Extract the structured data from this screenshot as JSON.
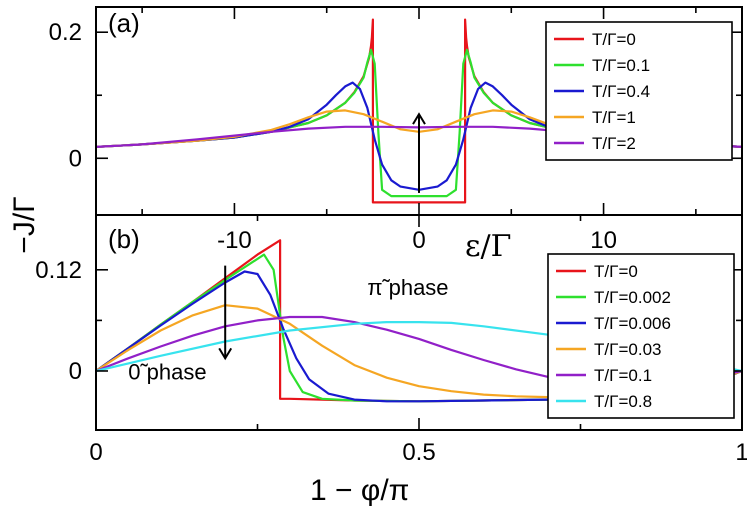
{
  "figure": {
    "y_axis_title": "−J/Γ",
    "y_axis_title_y_fixed": true
  },
  "chart_data": [
    {
      "panel": "(a)",
      "type": "line",
      "xlabel": "ε/Γ",
      "ylabel": "−J/Γ",
      "xlim": [
        -17.5,
        17.5
      ],
      "ylim": [
        -0.09,
        0.24
      ],
      "x_ticks": [
        -10,
        0,
        10
      ],
      "x_tick_labels": [
        "-10",
        "0",
        "10"
      ],
      "y_ticks": [
        0,
        0.2
      ],
      "y_tick_labels": [
        "0",
        "0.2"
      ],
      "legend_position": "top-right",
      "grid": false,
      "annotations": [
        {
          "type": "arrow",
          "x": 0,
          "from_y": -0.055,
          "to_y": 0.07,
          "meaning": "increasing T"
        }
      ],
      "series": [
        {
          "name": "T/Γ=0",
          "color": "#e8141b",
          "x": [
            -17.5,
            -15,
            -12,
            -10,
            -8,
            -6,
            -5,
            -4,
            -3.5,
            -3,
            -2.7,
            -2.6,
            -2.55,
            -2.5,
            -2.5,
            2.5,
            2.5,
            2.55,
            2.6,
            2.7,
            3,
            3.5,
            4,
            5,
            6,
            8,
            10,
            12,
            15,
            17.5
          ],
          "y": [
            0.018,
            0.022,
            0.028,
            0.033,
            0.042,
            0.056,
            0.068,
            0.088,
            0.105,
            0.13,
            0.16,
            0.178,
            0.192,
            0.22,
            -0.07,
            -0.07,
            0.22,
            0.192,
            0.178,
            0.16,
            0.13,
            0.105,
            0.088,
            0.068,
            0.056,
            0.042,
            0.033,
            0.028,
            0.022,
            0.018
          ]
        },
        {
          "name": "T/Γ=0.1",
          "color": "#2ee02e",
          "x": [
            -17.5,
            -15,
            -12,
            -10,
            -8,
            -6,
            -5,
            -4,
            -3.5,
            -3,
            -2.8,
            -2.6,
            -2.4,
            -2.2,
            -2,
            -1.5,
            0,
            1.5,
            2,
            2.2,
            2.4,
            2.6,
            2.8,
            3,
            3.5,
            4,
            5,
            6,
            8,
            10,
            12,
            15,
            17.5
          ],
          "y": [
            0.018,
            0.022,
            0.028,
            0.033,
            0.042,
            0.056,
            0.068,
            0.088,
            0.104,
            0.128,
            0.152,
            0.172,
            0.15,
            0.04,
            -0.05,
            -0.06,
            -0.06,
            -0.06,
            -0.05,
            0.04,
            0.15,
            0.172,
            0.152,
            0.128,
            0.104,
            0.088,
            0.068,
            0.056,
            0.042,
            0.033,
            0.028,
            0.022,
            0.018
          ]
        },
        {
          "name": "T/Γ=0.4",
          "color": "#1a1ad0",
          "x": [
            -17.5,
            -15,
            -12,
            -10,
            -8,
            -7,
            -6,
            -5,
            -4.5,
            -4,
            -3.6,
            -3.2,
            -2.8,
            -2.4,
            -2,
            -1.5,
            -1,
            0,
            1,
            1.5,
            2,
            2.4,
            2.8,
            3.2,
            3.6,
            4,
            4.5,
            5,
            6,
            7,
            8,
            10,
            12,
            15,
            17.5
          ],
          "y": [
            0.018,
            0.022,
            0.028,
            0.033,
            0.042,
            0.05,
            0.062,
            0.085,
            0.1,
            0.114,
            0.12,
            0.11,
            0.08,
            0.03,
            -0.01,
            -0.035,
            -0.045,
            -0.05,
            -0.045,
            -0.035,
            -0.01,
            0.03,
            0.08,
            0.11,
            0.12,
            0.114,
            0.1,
            0.085,
            0.062,
            0.05,
            0.042,
            0.033,
            0.028,
            0.022,
            0.018
          ]
        },
        {
          "name": "T/Γ=1",
          "color": "#f5a623",
          "x": [
            -17.5,
            -15,
            -12,
            -10,
            -8,
            -7,
            -6,
            -5,
            -4,
            -3,
            -2,
            -1,
            0,
            1,
            2,
            3,
            4,
            5,
            6,
            7,
            8,
            10,
            12,
            15,
            17.5
          ],
          "y": [
            0.018,
            0.022,
            0.028,
            0.034,
            0.045,
            0.054,
            0.065,
            0.074,
            0.076,
            0.07,
            0.058,
            0.046,
            0.042,
            0.046,
            0.058,
            0.07,
            0.076,
            0.074,
            0.065,
            0.054,
            0.045,
            0.034,
            0.028,
            0.022,
            0.018
          ]
        },
        {
          "name": "T/Γ=2",
          "color": "#9120c8",
          "x": [
            -17.5,
            -15,
            -12,
            -10,
            -8,
            -6,
            -4,
            -2,
            0,
            2,
            4,
            6,
            8,
            10,
            12,
            15,
            17.5
          ],
          "y": [
            0.018,
            0.022,
            0.03,
            0.036,
            0.042,
            0.047,
            0.05,
            0.05,
            0.049,
            0.05,
            0.05,
            0.047,
            0.042,
            0.036,
            0.03,
            0.022,
            0.018
          ]
        }
      ]
    },
    {
      "panel": "(b)",
      "type": "line",
      "xlabel": "1 − φ/π",
      "ylabel": "−J/Γ",
      "xlim": [
        0,
        1
      ],
      "ylim": [
        -0.07,
        0.185
      ],
      "x_ticks": [
        0,
        0.5,
        1
      ],
      "x_tick_labels": [
        "0",
        "0.5",
        "1"
      ],
      "y_ticks": [
        0,
        0.12
      ],
      "y_tick_labels": [
        "0",
        "0.12"
      ],
      "legend_position": "right",
      "grid": false,
      "annotations": [
        {
          "type": "arrow",
          "x": 0.2,
          "from_y": 0.125,
          "to_y": 0.015,
          "meaning": "increasing T"
        },
        {
          "type": "text",
          "text": "0̃ phase",
          "x": 0.05,
          "y": -0.01
        },
        {
          "type": "text",
          "text": "π̃ phase",
          "x": 0.42,
          "y": 0.09
        }
      ],
      "series": [
        {
          "name": "T/Γ=0",
          "color": "#e8141b",
          "x": [
            0,
            0.05,
            0.1,
            0.15,
            0.2,
            0.25,
            0.285,
            0.285,
            0.3,
            0.35,
            0.4,
            0.5,
            0.6,
            0.7,
            0.8,
            0.9,
            0.95,
            1
          ],
          "y": [
            0,
            0.027,
            0.055,
            0.082,
            0.11,
            0.138,
            0.155,
            -0.033,
            -0.033,
            -0.034,
            -0.035,
            -0.036,
            -0.035,
            -0.034,
            -0.032,
            -0.029,
            -0.015,
            0
          ]
        },
        {
          "name": "T/Γ=0.002",
          "color": "#2ee02e",
          "x": [
            0,
            0.05,
            0.1,
            0.15,
            0.2,
            0.24,
            0.26,
            0.275,
            0.29,
            0.3,
            0.32,
            0.35,
            0.4,
            0.5,
            0.6,
            0.7,
            0.8,
            0.9,
            0.95,
            1
          ],
          "y": [
            0,
            0.027,
            0.055,
            0.082,
            0.108,
            0.128,
            0.138,
            0.12,
            0.04,
            0.0,
            -0.025,
            -0.033,
            -0.035,
            -0.036,
            -0.035,
            -0.034,
            -0.032,
            -0.029,
            -0.015,
            0
          ]
        },
        {
          "name": "T/Γ=0.006",
          "color": "#1a1ad0",
          "x": [
            0,
            0.05,
            0.1,
            0.15,
            0.2,
            0.23,
            0.25,
            0.27,
            0.29,
            0.31,
            0.33,
            0.36,
            0.4,
            0.45,
            0.5,
            0.6,
            0.7,
            0.8,
            0.9,
            0.95,
            1
          ],
          "y": [
            0,
            0.027,
            0.054,
            0.08,
            0.105,
            0.118,
            0.115,
            0.09,
            0.05,
            0.015,
            -0.01,
            -0.027,
            -0.034,
            -0.036,
            -0.036,
            -0.035,
            -0.034,
            -0.032,
            -0.029,
            -0.015,
            0
          ]
        },
        {
          "name": "T/Γ=0.03",
          "color": "#f5a623",
          "x": [
            0,
            0.05,
            0.1,
            0.15,
            0.2,
            0.25,
            0.3,
            0.35,
            0.4,
            0.45,
            0.5,
            0.55,
            0.6,
            0.65,
            0.7,
            0.8,
            0.9,
            0.95,
            1
          ],
          "y": [
            0,
            0.025,
            0.048,
            0.066,
            0.078,
            0.074,
            0.056,
            0.03,
            0.007,
            -0.008,
            -0.018,
            -0.024,
            -0.028,
            -0.03,
            -0.031,
            -0.03,
            -0.026,
            -0.014,
            0
          ]
        },
        {
          "name": "T/Γ=0.1",
          "color": "#9120c8",
          "x": [
            0,
            0.05,
            0.1,
            0.15,
            0.2,
            0.25,
            0.3,
            0.35,
            0.4,
            0.45,
            0.5,
            0.55,
            0.6,
            0.65,
            0.7,
            0.75,
            0.8,
            0.85,
            0.9,
            0.95,
            1
          ],
          "y": [
            0,
            0.015,
            0.029,
            0.042,
            0.053,
            0.06,
            0.064,
            0.064,
            0.058,
            0.049,
            0.038,
            0.025,
            0.013,
            0.002,
            -0.007,
            -0.013,
            -0.017,
            -0.017,
            -0.014,
            -0.008,
            0
          ]
        },
        {
          "name": "T/Γ=0.8",
          "color": "#38e3ee",
          "x": [
            0,
            0.1,
            0.2,
            0.3,
            0.4,
            0.45,
            0.5,
            0.55,
            0.6,
            0.7,
            0.8,
            0.9,
            0.95,
            1
          ],
          "y": [
            0,
            0.018,
            0.035,
            0.048,
            0.056,
            0.058,
            0.058,
            0.057,
            0.053,
            0.043,
            0.029,
            0.015,
            0.008,
            0
          ]
        }
      ]
    }
  ]
}
